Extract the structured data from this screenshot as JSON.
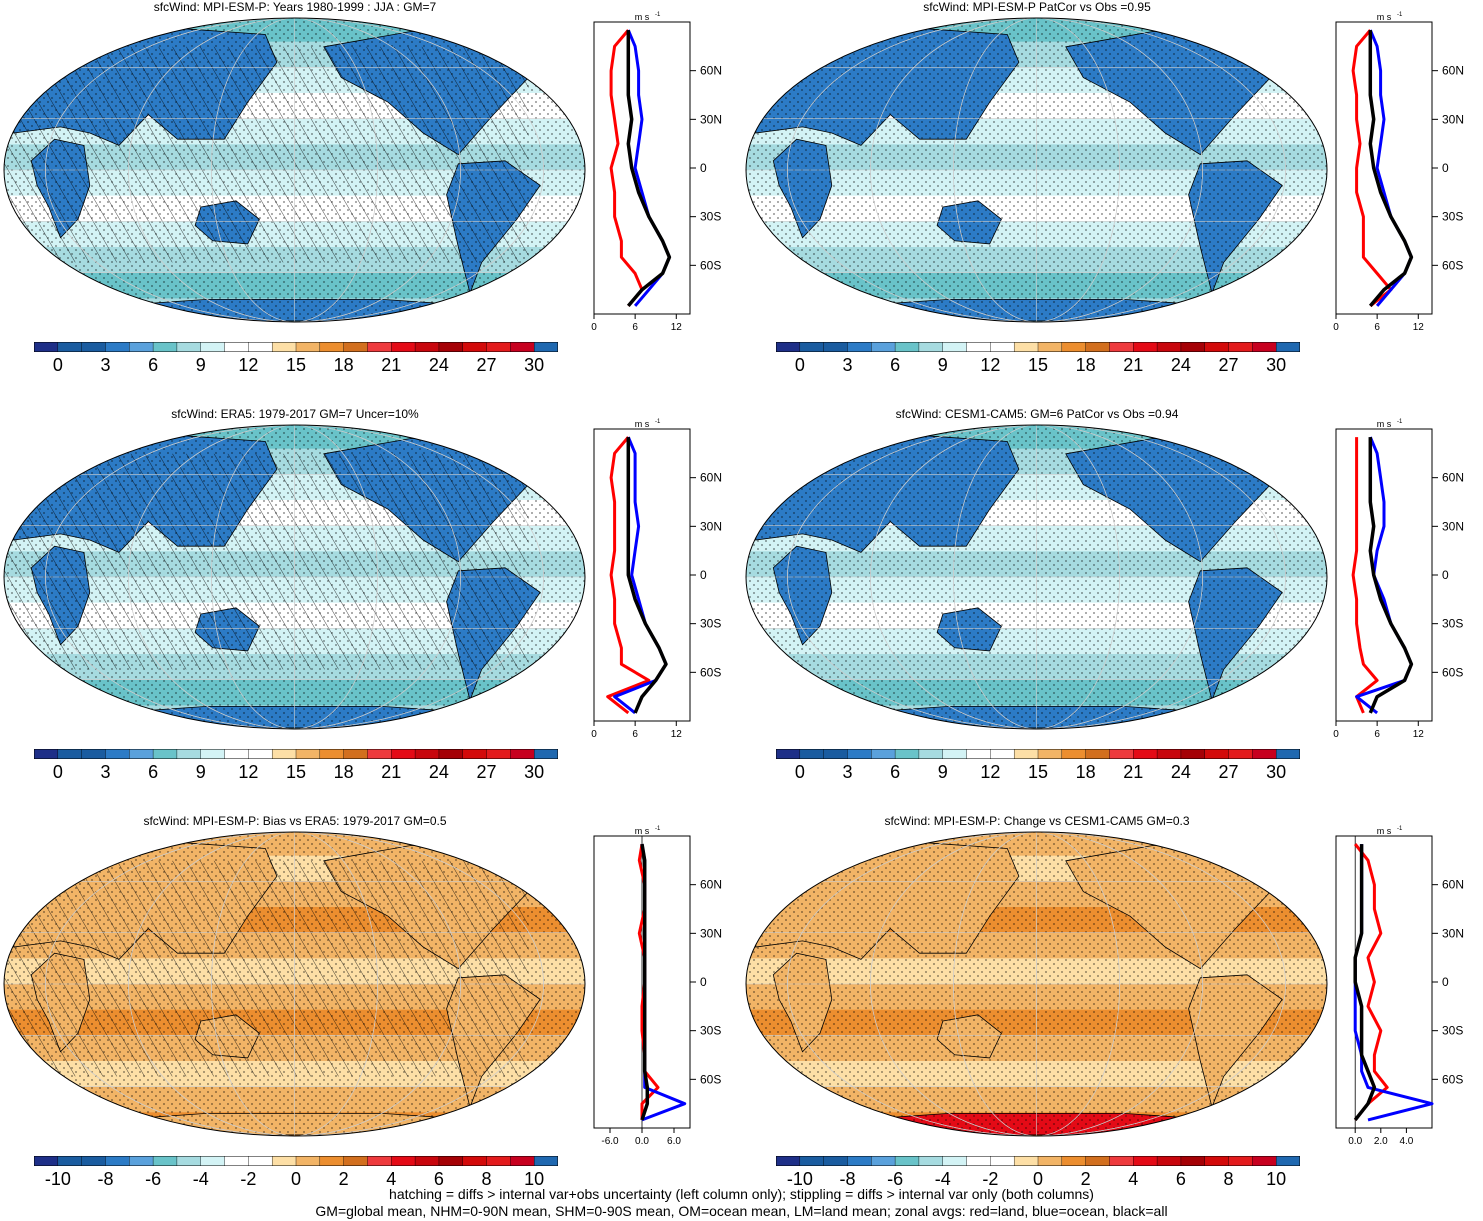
{
  "colors": {
    "div": [
      "#1e2f88",
      "#1a5ca0",
      "#2c7bc6",
      "#5aa1dc",
      "#69c3c9",
      "#a6dbe0",
      "#d3f3f5",
      "#ffffff",
      "#fddfa6",
      "#f2b466",
      "#ec8e2f",
      "#d26f1e",
      "#ee3a3d",
      "#e40a16",
      "#c8060d",
      "#a50106",
      "#d30a0a",
      "#e31a1c",
      "#c7001f",
      "#1f68b0"
    ],
    "land_series": "#ff0000",
    "ocean_series": "#0000ff",
    "all_series": "#000000"
  },
  "panels": [
    {
      "id": "p1",
      "title": "sfcWind: MPI-ESM-P: Years 1980-1999 : JJA : GM=7",
      "field": "mean",
      "hatch": true,
      "colorbar_ticks": [
        "0",
        "3",
        "6",
        "9",
        "12",
        "15",
        "18",
        "21",
        "24",
        "27",
        "30"
      ],
      "zonal_unit": "m s",
      "zonal_unit_sup": "-1",
      "zonal_xticks": [
        "0",
        "6",
        "12"
      ],
      "zonal_yticks": [
        "60N",
        "30N",
        "0",
        "30S",
        "60S"
      ]
    },
    {
      "id": "p2",
      "title": "sfcWind: MPI-ESM-P PatCor vs Obs =0.95",
      "field": "mean",
      "hatch": false,
      "colorbar_ticks": [
        "0",
        "3",
        "6",
        "9",
        "12",
        "15",
        "18",
        "21",
        "24",
        "27",
        "30"
      ],
      "zonal_unit": "m s",
      "zonal_unit_sup": "-1",
      "zonal_xticks": [
        "0",
        "6",
        "12"
      ],
      "zonal_yticks": [
        "60N",
        "30N",
        "0",
        "30S",
        "60S"
      ]
    },
    {
      "id": "p3",
      "title": "sfcWind: ERA5: 1979-2017 GM=7 Uncer=10%",
      "field": "mean",
      "hatch": true,
      "colorbar_ticks": [
        "0",
        "3",
        "6",
        "9",
        "12",
        "15",
        "18",
        "21",
        "24",
        "27",
        "30"
      ],
      "zonal_unit": "m s",
      "zonal_unit_sup": "-1",
      "zonal_xticks": [
        "0",
        "6",
        "12"
      ],
      "zonal_yticks": [
        "60N",
        "30N",
        "0",
        "30S",
        "60S"
      ]
    },
    {
      "id": "p4",
      "title": "sfcWind: CESM1-CAM5: GM=6 PatCor vs Obs =0.94",
      "field": "mean",
      "hatch": false,
      "colorbar_ticks": [
        "0",
        "3",
        "6",
        "9",
        "12",
        "15",
        "18",
        "21",
        "24",
        "27",
        "30"
      ],
      "zonal_unit": "m s",
      "zonal_unit_sup": "-1",
      "zonal_xticks": [
        "0",
        "6",
        "12"
      ],
      "zonal_yticks": [
        "60N",
        "30N",
        "0",
        "30S",
        "60S"
      ]
    },
    {
      "id": "p5",
      "title": "sfcWind: MPI-ESM-P: Bias vs ERA5: 1979-2017 GM=0.5",
      "field": "diff",
      "hatch": true,
      "colorbar_ticks": [
        "-10",
        "-8",
        "-6",
        "-4",
        "-2",
        "0",
        "2",
        "4",
        "6",
        "8",
        "10"
      ],
      "zonal_unit": "m s",
      "zonal_unit_sup": "-1",
      "zonal_xticks": [
        "-6.0",
        "0.0",
        "6.0"
      ],
      "zonal_yticks": [
        "60N",
        "30N",
        "0",
        "30S",
        "60S"
      ]
    },
    {
      "id": "p6",
      "title": "sfcWind: MPI-ESM-P: Change vs CESM1-CAM5 GM=0.3",
      "field": "diff",
      "hatch": false,
      "colorbar_ticks": [
        "-10",
        "-8",
        "-6",
        "-4",
        "-2",
        "0",
        "2",
        "4",
        "6",
        "8",
        "10"
      ],
      "zonal_unit": "m s",
      "zonal_unit_sup": "-1",
      "zonal_xticks": [
        "0.0",
        "2.0",
        "4.0"
      ],
      "zonal_yticks": [
        "60N",
        "30N",
        "0",
        "30S",
        "60S"
      ]
    }
  ],
  "chart_data": [
    {
      "type": "line",
      "panel": "p1",
      "xlim": [
        0,
        14
      ],
      "ylim": [
        -90,
        90
      ],
      "y": [
        85,
        75,
        60,
        45,
        30,
        15,
        0,
        -15,
        -30,
        -45,
        -55,
        -65,
        -75,
        -85
      ],
      "series": [
        {
          "values": [
            5,
            3,
            2.5,
            2.5,
            3,
            3.5,
            2.5,
            3,
            3,
            4,
            4,
            6,
            7,
            5
          ]
        },
        {
          "values": [
            5,
            6,
            6.5,
            6.5,
            7,
            6.5,
            6,
            7,
            8,
            10,
            11,
            10,
            8,
            6
          ]
        },
        {
          "values": [
            5,
            5,
            5,
            5,
            5.5,
            5,
            5.5,
            6.5,
            8,
            10,
            11,
            10,
            7,
            5
          ]
        }
      ]
    },
    {
      "type": "line",
      "panel": "p2",
      "xlim": [
        0,
        14
      ],
      "ylim": [
        -90,
        90
      ],
      "y": [
        85,
        75,
        60,
        45,
        30,
        15,
        0,
        -15,
        -30,
        -45,
        -55,
        -65,
        -75,
        -85
      ],
      "series": [
        {
          "values": [
            5,
            3,
            2.5,
            3,
            3,
            3.5,
            3,
            3,
            4,
            4,
            4,
            6,
            8,
            5
          ]
        },
        {
          "values": [
            5,
            6,
            6.5,
            6.5,
            7,
            6.5,
            6,
            7,
            8,
            10,
            11,
            10,
            8,
            6
          ]
        },
        {
          "values": [
            5,
            5,
            5,
            5,
            5.5,
            5,
            5.5,
            6.5,
            8,
            10,
            11,
            10,
            7,
            5
          ]
        }
      ]
    },
    {
      "type": "line",
      "panel": "p3",
      "xlim": [
        0,
        14
      ],
      "ylim": [
        -90,
        90
      ],
      "y": [
        85,
        75,
        60,
        45,
        30,
        15,
        0,
        -15,
        -30,
        -45,
        -55,
        -65,
        -75,
        -85
      ],
      "series": [
        {
          "values": [
            5,
            3,
            2.5,
            3,
            3,
            3,
            2.5,
            3,
            3,
            4,
            4,
            8,
            2,
            5
          ]
        },
        {
          "values": [
            5,
            6,
            6,
            6,
            6.5,
            6,
            5.5,
            6.5,
            7.5,
            9.5,
            10.5,
            9,
            3,
            6
          ]
        },
        {
          "values": [
            5,
            5,
            5,
            5,
            5,
            5,
            5,
            6,
            7.5,
            9.5,
            10.5,
            9,
            7,
            6
          ]
        }
      ]
    },
    {
      "type": "line",
      "panel": "p4",
      "xlim": [
        0,
        14
      ],
      "ylim": [
        -90,
        90
      ],
      "y": [
        85,
        75,
        60,
        45,
        30,
        15,
        0,
        -15,
        -30,
        -45,
        -55,
        -65,
        -75,
        -85
      ],
      "series": [
        {
          "values": [
            3,
            3,
            3,
            3,
            3,
            3,
            2.5,
            3,
            3,
            3.5,
            4,
            6,
            3,
            4
          ]
        },
        {
          "values": [
            5,
            6,
            6.5,
            7,
            7,
            6,
            5.5,
            7,
            8,
            10,
            11,
            10,
            3,
            6
          ]
        },
        {
          "values": [
            5,
            5,
            5,
            5,
            5.5,
            5,
            5.5,
            6.5,
            8,
            10,
            11,
            10,
            6,
            5
          ]
        }
      ]
    },
    {
      "type": "line",
      "panel": "p5",
      "xlim": [
        -9,
        9
      ],
      "ylim": [
        -90,
        90
      ],
      "y": [
        85,
        75,
        60,
        45,
        30,
        15,
        0,
        -15,
        -30,
        -45,
        -55,
        -65,
        -75,
        -85
      ],
      "series": [
        {
          "values": [
            0,
            -0.5,
            0.5,
            0.5,
            -0.5,
            0.5,
            0.5,
            0,
            0,
            0.5,
            0.5,
            3,
            0,
            0
          ]
        },
        {
          "values": [
            0,
            0.5,
            0.5,
            0.5,
            0.5,
            0.5,
            0.5,
            0.5,
            0.5,
            0.5,
            0.5,
            0.5,
            8,
            0
          ]
        },
        {
          "values": [
            0,
            0.5,
            0.5,
            0.5,
            0.5,
            0.5,
            0.5,
            0.5,
            0.5,
            0.5,
            0.5,
            1,
            1,
            0
          ]
        }
      ]
    },
    {
      "type": "line",
      "panel": "p6",
      "xlim": [
        -1.5,
        6
      ],
      "ylim": [
        -90,
        90
      ],
      "y": [
        85,
        75,
        60,
        45,
        30,
        15,
        0,
        -15,
        -30,
        -45,
        -55,
        -65,
        -75,
        -85
      ],
      "series": [
        {
          "values": [
            0,
            1,
            1.5,
            1.5,
            2,
            1,
            1.5,
            1,
            2,
            1.5,
            1.5,
            2.5,
            1,
            0
          ]
        },
        {
          "values": [
            0.5,
            0.5,
            0.5,
            0.5,
            0.5,
            0,
            0,
            0,
            0,
            0.5,
            0.5,
            1,
            6,
            1
          ]
        },
        {
          "values": [
            0.5,
            0.5,
            0.5,
            0.5,
            0.5,
            0,
            0,
            0.5,
            0.5,
            0.5,
            1,
            1.5,
            1,
            0
          ]
        }
      ]
    }
  ],
  "footer": {
    "line1": "hatching = diffs > internal var+obs uncertainty (left column only); stippling = diffs > internal var only (both columns)",
    "line2": "GM=global mean, NHM=0-90N mean, SHM=0-90S mean, OM=ocean mean, LM=land mean; zonal avgs: red=land, blue=ocean, black=all"
  }
}
